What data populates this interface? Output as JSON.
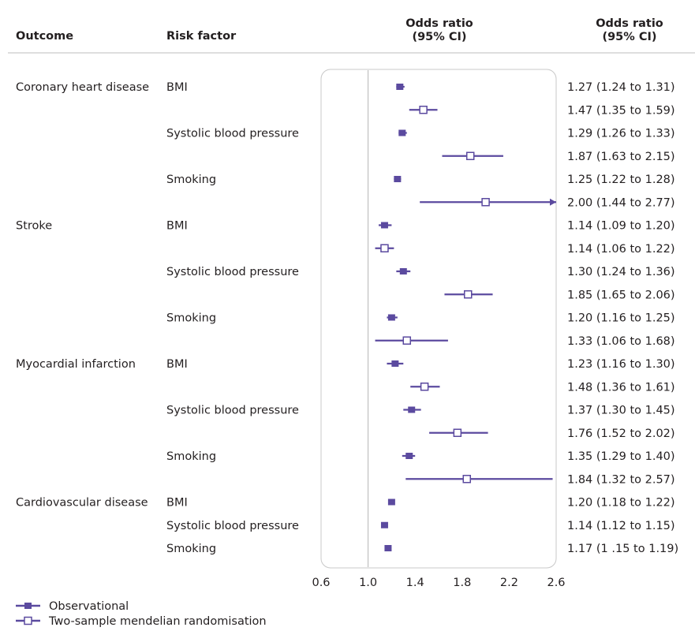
{
  "header": {
    "outcome": "Outcome",
    "risk_factor": "Risk factor",
    "or_plot_l1": "Odds ratio",
    "or_plot_l2": "(95% CI)",
    "or_text_l1": "Odds ratio",
    "or_text_l2": "(95% CI)"
  },
  "legend": {
    "observational": "Observational",
    "mendelian": "Two-sample mendelian randomisation"
  },
  "colors": {
    "accent": "#5b4a9f",
    "frame": "#c8c8c8",
    "refline": "#b4b4b4",
    "text": "#231f20"
  },
  "chart_data": {
    "type": "forest",
    "xlim": [
      0.6,
      2.6
    ],
    "xticks": [
      "0.6",
      "1.0",
      "1.4",
      "1.8",
      "2.2",
      "2.6"
    ],
    "reference_line": 1.0,
    "series": [
      {
        "name": "Observational",
        "marker": "filled-square"
      },
      {
        "name": "Two-sample mendelian randomisation",
        "marker": "open-square"
      }
    ],
    "rows": [
      {
        "outcome": "Coronary heart disease",
        "factor": "BMI",
        "method": "Observational",
        "or": 1.27,
        "lo": 1.24,
        "hi": 1.31,
        "label": "1.27 (1.24 to 1.31)"
      },
      {
        "outcome": "",
        "factor": "",
        "method": "Two-sample mendelian randomisation",
        "or": 1.47,
        "lo": 1.35,
        "hi": 1.59,
        "label": "1.47 (1.35 to 1.59)"
      },
      {
        "outcome": "",
        "factor": "Systolic blood pressure",
        "method": "Observational",
        "or": 1.29,
        "lo": 1.26,
        "hi": 1.33,
        "label": "1.29 (1.26 to 1.33)"
      },
      {
        "outcome": "",
        "factor": "",
        "method": "Two-sample mendelian randomisation",
        "or": 1.87,
        "lo": 1.63,
        "hi": 2.15,
        "label": "1.87 (1.63 to 2.15)"
      },
      {
        "outcome": "",
        "factor": "Smoking",
        "method": "Observational",
        "or": 1.25,
        "lo": 1.22,
        "hi": 1.28,
        "label": "1.25 (1.22 to 1.28)"
      },
      {
        "outcome": "",
        "factor": "",
        "method": "Two-sample mendelian randomisation",
        "or": 2.0,
        "lo": 1.44,
        "hi": 2.77,
        "label": "2.00 (1.44 to 2.77)"
      },
      {
        "outcome": "Stroke",
        "factor": "BMI",
        "method": "Observational",
        "or": 1.14,
        "lo": 1.09,
        "hi": 1.2,
        "label": "1.14 (1.09 to 1.20)"
      },
      {
        "outcome": "",
        "factor": "",
        "method": "Two-sample mendelian randomisation",
        "or": 1.14,
        "lo": 1.06,
        "hi": 1.22,
        "label": "1.14 (1.06 to 1.22)"
      },
      {
        "outcome": "",
        "factor": "Systolic blood pressure",
        "method": "Observational",
        "or": 1.3,
        "lo": 1.24,
        "hi": 1.36,
        "label": "1.30 (1.24 to 1.36)"
      },
      {
        "outcome": "",
        "factor": "",
        "method": "Two-sample mendelian randomisation",
        "or": 1.85,
        "lo": 1.65,
        "hi": 2.06,
        "label": "1.85 (1.65 to 2.06)"
      },
      {
        "outcome": "",
        "factor": "Smoking",
        "method": "Observational",
        "or": 1.2,
        "lo": 1.16,
        "hi": 1.25,
        "label": "1.20 (1.16 to 1.25)"
      },
      {
        "outcome": "",
        "factor": "",
        "method": "Two-sample mendelian randomisation",
        "or": 1.33,
        "lo": 1.06,
        "hi": 1.68,
        "label": "1.33 (1.06 to 1.68)"
      },
      {
        "outcome": "Myocardial infarction",
        "factor": "BMI",
        "method": "Observational",
        "or": 1.23,
        "lo": 1.16,
        "hi": 1.3,
        "label": "1.23 (1.16 to 1.30)"
      },
      {
        "outcome": "",
        "factor": "",
        "method": "Two-sample mendelian randomisation",
        "or": 1.48,
        "lo": 1.36,
        "hi": 1.61,
        "label": "1.48 (1.36 to 1.61)"
      },
      {
        "outcome": "",
        "factor": "Systolic blood pressure",
        "method": "Observational",
        "or": 1.37,
        "lo": 1.3,
        "hi": 1.45,
        "label": "1.37 (1.30 to 1.45)"
      },
      {
        "outcome": "",
        "factor": "",
        "method": "Two-sample mendelian randomisation",
        "or": 1.76,
        "lo": 1.52,
        "hi": 2.02,
        "label": "1.76 (1.52 to 2.02)"
      },
      {
        "outcome": "",
        "factor": "Smoking",
        "method": "Observational",
        "or": 1.35,
        "lo": 1.29,
        "hi": 1.4,
        "label": "1.35 (1.29 to 1.40)"
      },
      {
        "outcome": "",
        "factor": "",
        "method": "Two-sample mendelian randomisation",
        "or": 1.84,
        "lo": 1.32,
        "hi": 2.57,
        "label": "1.84 (1.32 to 2.57)"
      },
      {
        "outcome": "Cardiovascular disease",
        "factor": "BMI",
        "method": "Observational",
        "or": 1.2,
        "lo": 1.18,
        "hi": 1.22,
        "label": "1.20 (1.18 to 1.22)"
      },
      {
        "outcome": "",
        "factor": "Systolic blood pressure",
        "method": "Observational",
        "or": 1.14,
        "lo": 1.12,
        "hi": 1.15,
        "label": "1.14 (1.12 to 1.15)"
      },
      {
        "outcome": "",
        "factor": "Smoking",
        "method": "Observational",
        "or": 1.17,
        "lo": 1.15,
        "hi": 1.19,
        "label": "1.17 (1 .15 to 1.19)"
      }
    ]
  }
}
